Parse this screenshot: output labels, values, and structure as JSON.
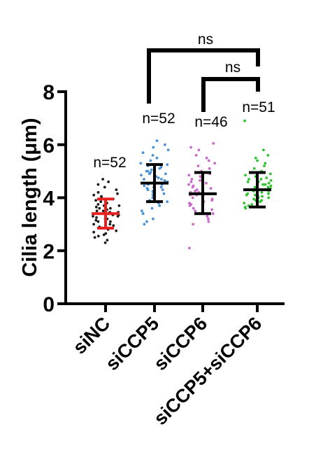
{
  "chart_data": {
    "type": "scatter",
    "ylabel": "Cilia length (μm)",
    "ylim": [
      0,
      8
    ],
    "yticks": [
      "0",
      "2",
      "4",
      "6",
      "8"
    ],
    "categories": [
      "siNC",
      "siCCP5",
      "siCCP6",
      "siCCP5+siCCP6"
    ],
    "series": [
      {
        "category": "siNC",
        "color": "#1a1a1a",
        "bar_color": "#e8201e",
        "n_label": "n=52",
        "mean": 3.4,
        "sd_low": 2.85,
        "sd_high": 3.95,
        "values": [
          2.3,
          2.4,
          2.5,
          2.55,
          2.6,
          2.65,
          2.7,
          2.75,
          2.8,
          2.85,
          2.9,
          2.95,
          3.0,
          3.0,
          3.05,
          3.1,
          3.1,
          3.15,
          3.2,
          3.2,
          3.25,
          3.3,
          3.3,
          3.35,
          3.4,
          3.4,
          3.45,
          3.5,
          3.5,
          3.55,
          3.6,
          3.6,
          3.65,
          3.7,
          3.7,
          3.75,
          3.8,
          3.85,
          3.9,
          3.95,
          4.0,
          4.05,
          4.1,
          4.15,
          4.2,
          4.3,
          4.4,
          4.5,
          4.6,
          4.7,
          3.35,
          3.45
        ]
      },
      {
        "category": "siCCP5",
        "color": "#4a90d9",
        "bar_color": "#000000",
        "n_label": "n=52",
        "mean": 4.55,
        "sd_low": 3.85,
        "sd_high": 5.25,
        "values": [
          3.0,
          3.1,
          3.2,
          3.4,
          3.5,
          3.6,
          3.7,
          3.8,
          3.85,
          3.9,
          4.0,
          4.05,
          4.1,
          4.15,
          4.2,
          4.25,
          4.3,
          4.35,
          4.4,
          4.45,
          4.5,
          4.5,
          4.55,
          4.6,
          4.6,
          4.65,
          4.7,
          4.75,
          4.8,
          4.85,
          4.9,
          4.95,
          5.0,
          5.05,
          5.1,
          5.15,
          5.2,
          5.25,
          5.3,
          5.4,
          5.5,
          5.6,
          5.7,
          5.8,
          5.9,
          6.0,
          6.15,
          4.4,
          4.7,
          4.3,
          4.9,
          5.0
        ]
      },
      {
        "category": "siCCP6",
        "color": "#c968c9",
        "bar_color": "#000000",
        "n_label": "n=46",
        "mean": 4.15,
        "sd_low": 3.4,
        "sd_high": 4.95,
        "values": [
          2.1,
          3.0,
          3.1,
          3.2,
          3.3,
          3.4,
          3.5,
          3.55,
          3.6,
          3.7,
          3.75,
          3.8,
          3.85,
          3.9,
          3.95,
          4.0,
          4.05,
          4.1,
          4.1,
          4.15,
          4.2,
          4.2,
          4.25,
          4.3,
          4.35,
          4.4,
          4.45,
          4.5,
          4.55,
          4.6,
          4.65,
          4.7,
          4.75,
          4.8,
          4.85,
          4.9,
          5.0,
          5.1,
          5.2,
          5.3,
          5.4,
          5.5,
          5.6,
          5.8,
          5.9,
          6.05
        ]
      },
      {
        "category": "siCCP5+siCCP6",
        "color": "#2fc42f",
        "bar_color": "#000000",
        "n_label": "n=51",
        "mean": 4.3,
        "sd_low": 3.65,
        "sd_high": 4.95,
        "values": [
          3.6,
          3.65,
          3.7,
          3.75,
          3.8,
          3.85,
          3.9,
          3.95,
          4.0,
          4.0,
          4.05,
          4.1,
          4.1,
          4.15,
          4.2,
          4.2,
          4.25,
          4.3,
          4.3,
          4.35,
          4.4,
          4.4,
          4.45,
          4.5,
          4.5,
          4.55,
          4.6,
          4.65,
          4.7,
          4.75,
          4.8,
          4.85,
          4.9,
          4.95,
          5.0,
          5.1,
          5.2,
          5.3,
          5.4,
          5.5,
          5.6,
          5.8,
          6.9,
          4.25,
          4.35,
          4.45,
          3.9,
          4.15,
          4.05,
          4.6,
          4.7
        ]
      }
    ],
    "significance": [
      {
        "from": "siCCP5",
        "to": "siCCP5+siCCP6",
        "label": "ns"
      },
      {
        "from": "siCCP6",
        "to": "siCCP5+siCCP6",
        "label": "ns"
      }
    ]
  }
}
